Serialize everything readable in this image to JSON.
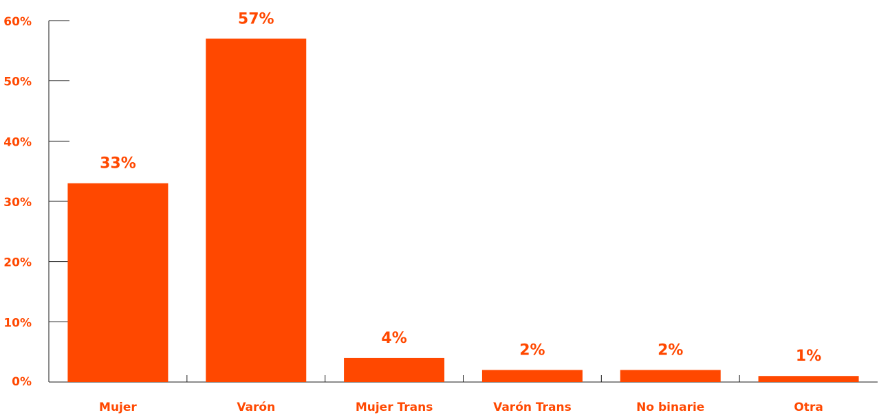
{
  "chart_data": {
    "type": "bar",
    "categories": [
      "Mujer",
      "Varón",
      "Mujer Trans",
      "Varón Trans",
      "No binarie",
      "Otra"
    ],
    "values": [
      33,
      57,
      4,
      2,
      2,
      1
    ],
    "value_labels": [
      "33%",
      "57%",
      "4%",
      "2%",
      "2%",
      "1%"
    ],
    "color": "#ff4800",
    "ylim": [
      0,
      60
    ],
    "yticks": [
      {
        "value": 0,
        "label": "0%"
      },
      {
        "value": 10,
        "label": "10%"
      },
      {
        "value": 20,
        "label": "20%"
      },
      {
        "value": 30,
        "label": "30%"
      },
      {
        "value": 40,
        "label": "40%"
      },
      {
        "value": 50,
        "label": "50%"
      },
      {
        "value": 60,
        "label": "60%"
      }
    ],
    "grid": false
  }
}
